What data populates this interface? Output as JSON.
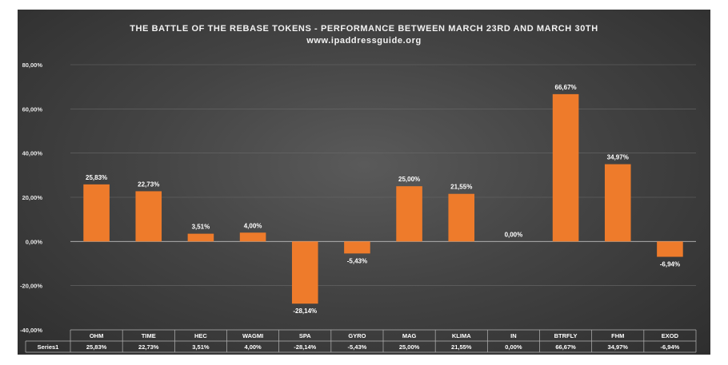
{
  "chart_data": {
    "type": "bar",
    "title": "THE BATTLE OF THE REBASE TOKENS - PERFORMANCE BETWEEN MARCH 23RD AND MARCH 30TH",
    "subtitle": "www.ipaddressguide.org",
    "categories": [
      "OHM",
      "TIME",
      "HEC",
      "WAGMI",
      "SPA",
      "GYRO",
      "MAG",
      "KLIMA",
      "IN",
      "BTRFLY",
      "FHM",
      "EXOD"
    ],
    "series": [
      {
        "name": "Series1",
        "values": [
          25.83,
          22.73,
          3.51,
          4.0,
          -28.14,
          -5.43,
          25.0,
          21.55,
          0.0,
          66.67,
          34.97,
          -6.94
        ],
        "labels": [
          "25,83%",
          "22,73%",
          "3,51%",
          "4,00%",
          "-28,14%",
          "-5,43%",
          "25,00%",
          "21,55%",
          "0,00%",
          "66,67%",
          "34,97%",
          "-6,94%"
        ]
      }
    ],
    "ylim": [
      -40,
      80
    ],
    "yticks": [
      80,
      60,
      40,
      20,
      0,
      -20,
      -40
    ],
    "ytick_labels": [
      "80,00%",
      "60,00%",
      "40,00%",
      "20,00%",
      "0,00%",
      "-20,00%",
      "-40,00%"
    ],
    "xlabel": "",
    "ylabel": "",
    "grid": true,
    "data_table": true,
    "bar_color": "#ee7b2b",
    "background_color": "#454545"
  }
}
